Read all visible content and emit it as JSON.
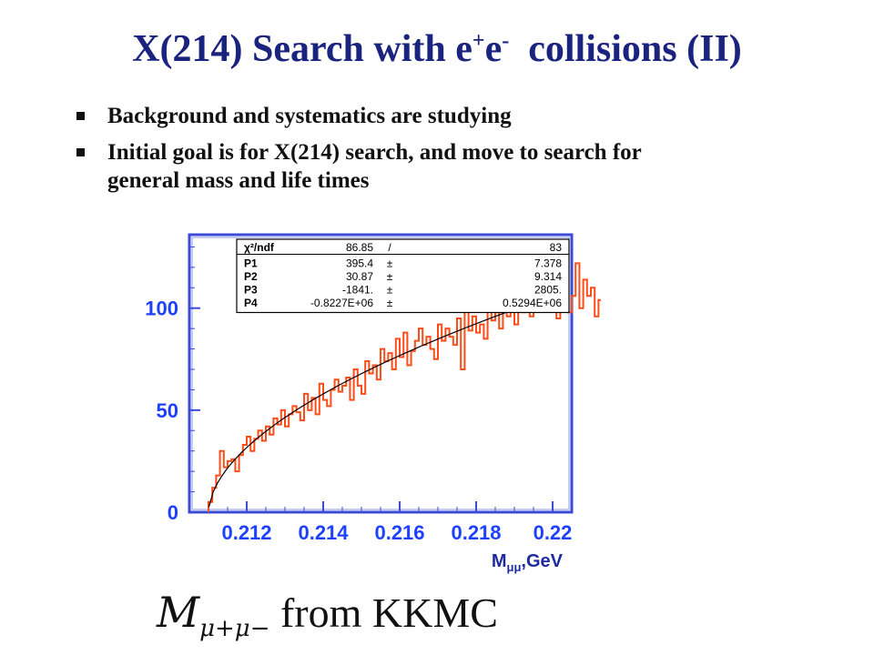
{
  "slide": {
    "title_main": "X(214) Search with e",
    "title_sup1": "+",
    "title_e2": "e",
    "title_sup2": "-",
    "title_rest": "  collisions (II)",
    "bullets": [
      "Background  and systematics are studying",
      "Initial goal is for X(214) search, and move to search for general mass and life times"
    ],
    "caption_m": "M",
    "caption_sub": "μ+μ−",
    "caption_rest": " from KKMC"
  },
  "colors": {
    "title": "#1a237e",
    "tick_labels": "#1e40ff",
    "histogram": "#ff4d1a",
    "fit": "#000000"
  },
  "chart_data": {
    "type": "line",
    "title": "",
    "xlabel": "Mμμ,GeV",
    "ylabel": "",
    "xlim": [
      0.2105,
      0.2205
    ],
    "ylim": [
      0,
      136
    ],
    "xticks": [
      0.212,
      0.214,
      0.216,
      0.218,
      0.22
    ],
    "xtick_labels": [
      "0.212",
      "0.214",
      "0.216",
      "0.218",
      "0.22"
    ],
    "yticks": [
      0,
      50,
      100
    ],
    "ytick_labels": [
      "0",
      "50",
      "100"
    ],
    "stats_box": {
      "header": [
        "χ²/ndf",
        "86.85",
        "/",
        "83"
      ],
      "rows": [
        [
          "P1",
          "395.4",
          "±",
          "7.378"
        ],
        [
          "P2",
          "30.87",
          "±",
          "9.314"
        ],
        [
          "P3",
          "-1841.",
          "±",
          "2805."
        ],
        [
          "P4",
          "-0.8227E+06",
          "±",
          "0.5294E+06"
        ]
      ]
    },
    "series": [
      {
        "name": "histogram",
        "style": "step",
        "bin_start": 0.211,
        "bin_width": 0.0001,
        "values": [
          5,
          12,
          18,
          30,
          22,
          25,
          26,
          20,
          28,
          33,
          37,
          30,
          36,
          40,
          35,
          42,
          38,
          46,
          43,
          50,
          42,
          48,
          52,
          49,
          45,
          58,
          50,
          56,
          48,
          63,
          55,
          52,
          60,
          65,
          59,
          62,
          66,
          55,
          70,
          62,
          58,
          74,
          68,
          72,
          65,
          80,
          74,
          78,
          70,
          85,
          76,
          88,
          72,
          79,
          84,
          90,
          82,
          86,
          80,
          75,
          92,
          84,
          90,
          86,
          82,
          95,
          70,
          100,
          89,
          96,
          88,
          92,
          85,
          102,
          94,
          98,
          90,
          105,
          96,
          100,
          92,
          108,
          98,
          110,
          96,
          102,
          115,
          104,
          99,
          118,
          103,
          95,
          110,
          112,
          98,
          106,
          122,
          100,
          114,
          106,
          110,
          96,
          104,
          108,
          118,
          100,
          102,
          112,
          126,
          110,
          124,
          90,
          115,
          120,
          110,
          113,
          0
        ],
        "color": "#ff4d1a"
      },
      {
        "name": "fit",
        "style": "line",
        "color": "#000000"
      }
    ]
  }
}
